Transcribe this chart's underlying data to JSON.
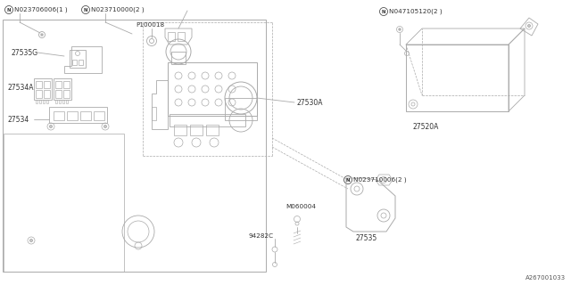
{
  "bg_color": "#ffffff",
  "lc": "#aaaaaa",
  "lw": 0.6,
  "fs": 5.8,
  "labels": {
    "N1": "N023706006(1 )",
    "N2": "N023710000(2 )",
    "P100018": "P100018",
    "27535G": "27535G",
    "27534A": "27534A",
    "27534": "27534",
    "27530A": "27530A",
    "N3": "N047105120(2 )",
    "27520A": "27520A",
    "N4": "N023710006(2 )",
    "M060004": "M060004",
    "94282C": "94282C",
    "27535": "27535",
    "footer": "A267001033"
  }
}
